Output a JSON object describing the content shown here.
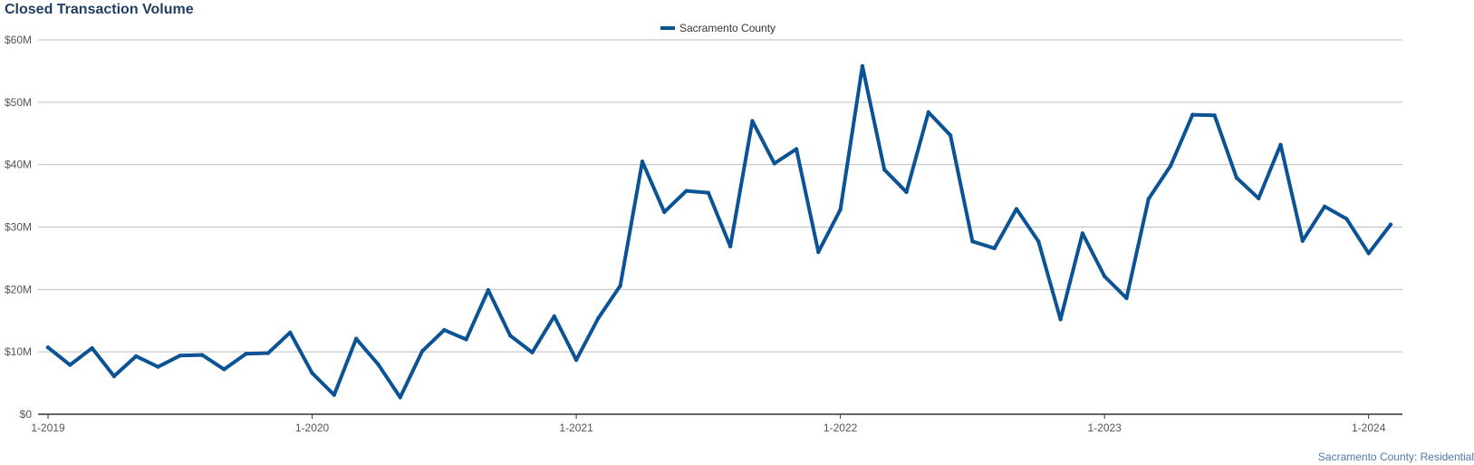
{
  "chart_data": {
    "type": "line",
    "title": "Closed Transaction Volume",
    "ylim": [
      0,
      60000000
    ],
    "y_ticks": [
      {
        "value": 0,
        "label": "$0"
      },
      {
        "value": 10000000,
        "label": "$10M"
      },
      {
        "value": 20000000,
        "label": "$20M"
      },
      {
        "value": 30000000,
        "label": "$30M"
      },
      {
        "value": 40000000,
        "label": "$40M"
      },
      {
        "value": 50000000,
        "label": "$50M"
      },
      {
        "value": 60000000,
        "label": "$60M"
      }
    ],
    "x_ticks": [
      {
        "month": "2019-01",
        "label": "1-2019"
      },
      {
        "month": "2020-01",
        "label": "1-2020"
      },
      {
        "month": "2021-01",
        "label": "1-2021"
      },
      {
        "month": "2022-01",
        "label": "1-2022"
      },
      {
        "month": "2023-01",
        "label": "1-2023"
      },
      {
        "month": "2024-01",
        "label": "1-2024"
      }
    ],
    "x_range": [
      "2019-01",
      "2024-02"
    ],
    "grid": true,
    "legend_position": "top-center",
    "series": [
      {
        "name": "Sacramento County",
        "color": "#0b5394",
        "x": [
          "2019-01",
          "2019-02",
          "2019-03",
          "2019-04",
          "2019-05",
          "2019-06",
          "2019-07",
          "2019-08",
          "2019-09",
          "2019-10",
          "2019-11",
          "2019-12",
          "2020-01",
          "2020-02",
          "2020-03",
          "2020-04",
          "2020-05",
          "2020-06",
          "2020-07",
          "2020-08",
          "2020-09",
          "2020-10",
          "2020-11",
          "2020-12",
          "2021-01",
          "2021-02",
          "2021-03",
          "2021-04",
          "2021-05",
          "2021-06",
          "2021-07",
          "2021-08",
          "2021-09",
          "2021-10",
          "2021-11",
          "2021-12",
          "2022-01",
          "2022-02",
          "2022-03",
          "2022-04",
          "2022-05",
          "2022-06",
          "2022-07",
          "2022-08",
          "2022-09",
          "2022-10",
          "2022-11",
          "2022-12",
          "2023-01",
          "2023-02",
          "2023-03",
          "2023-04",
          "2023-05",
          "2023-06",
          "2023-07",
          "2023-08",
          "2023-09",
          "2023-10",
          "2023-11",
          "2023-12",
          "2024-01",
          "2024-02"
        ],
        "values": [
          10700000,
          7900000,
          10600000,
          6100000,
          9300000,
          7600000,
          9400000,
          9500000,
          7200000,
          9700000,
          9800000,
          13100000,
          6600000,
          3100000,
          12100000,
          8000000,
          2700000,
          10100000,
          13500000,
          12000000,
          19900000,
          12600000,
          9900000,
          15700000,
          8700000,
          15400000,
          20600000,
          40500000,
          32400000,
          35800000,
          35500000,
          26900000,
          47000000,
          40200000,
          42500000,
          26000000,
          32800000,
          55800000,
          39200000,
          35600000,
          48400000,
          44700000,
          27700000,
          26600000,
          32900000,
          27700000,
          15200000,
          29000000,
          22100000,
          18600000,
          34500000,
          39800000,
          48000000,
          47900000,
          37900000,
          34600000,
          43200000,
          27800000,
          33300000,
          31300000,
          25800000,
          30400000
        ]
      }
    ]
  },
  "footer": {
    "source_note": "Sacramento County: Residential"
  }
}
